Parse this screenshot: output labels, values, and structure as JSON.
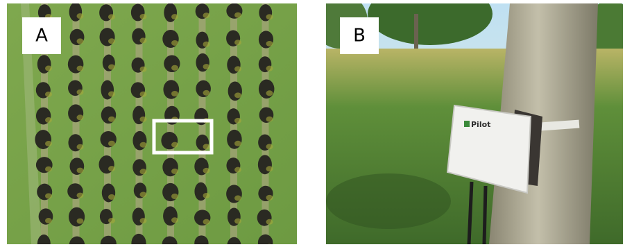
{
  "panels": [
    {
      "label": "A"
    },
    {
      "label": "B",
      "device_text": "Pilot"
    }
  ]
}
